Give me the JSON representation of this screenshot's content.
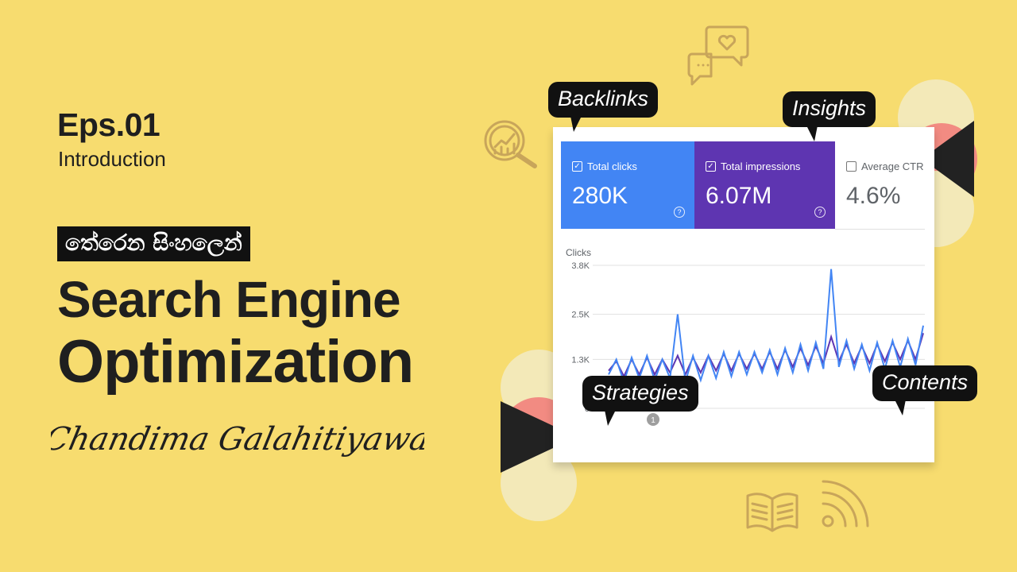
{
  "episode": {
    "label": "Eps.01",
    "subtitle": "Introduction"
  },
  "tagline_si": "තේරෙන සිංහලෙන්",
  "title": {
    "line1": "Search Engine",
    "line2": "Optimization"
  },
  "author": "Chandima Galahitiyawa",
  "colors": {
    "background": "#f7dc6f",
    "clicks": "#4285f4",
    "impressions": "#5e35b1",
    "bubble": "#111111",
    "accent_pink": "#f28b82"
  },
  "bubbles": [
    "Backlinks",
    "Insights",
    "Strategies",
    "Contents"
  ],
  "metrics": [
    {
      "label": "Total clicks",
      "value": "280K",
      "checked": true,
      "help": "?"
    },
    {
      "label": "Total impressions",
      "value": "6.07M",
      "checked": true,
      "help": "?"
    },
    {
      "label": "Average CTR",
      "value": "4.6%",
      "checked": false
    }
  ],
  "chart": {
    "y_title": "Clicks",
    "ticks": [
      "3.8K",
      "2.5K",
      "1.3K",
      "0"
    ],
    "annotation": "1"
  },
  "chart_data": {
    "type": "line",
    "ylabel": "Clicks",
    "ylim": [
      0,
      3800
    ],
    "series": [
      {
        "name": "Total clicks",
        "values": [
          900,
          1300,
          700,
          1350,
          800,
          1400,
          750,
          1300,
          800,
          2500,
          700,
          1400,
          750,
          1400,
          800,
          1500,
          850,
          1500,
          900,
          1500,
          950,
          1550,
          900,
          1600,
          950,
          1700,
          1000,
          1750,
          1050,
          3700,
          1100,
          1800,
          1050,
          1700,
          1000,
          1750,
          1050,
          1800,
          1100,
          1850,
          1150,
          2200
        ]
      },
      {
        "name": "Total impressions",
        "values": [
          1000,
          1250,
          850,
          1300,
          900,
          1350,
          900,
          1300,
          950,
          1400,
          900,
          1350,
          950,
          1400,
          1000,
          1450,
          1000,
          1450,
          1050,
          1450,
          1050,
          1500,
          1050,
          1550,
          1100,
          1600,
          1150,
          1650,
          1200,
          1900,
          1250,
          1700,
          1200,
          1650,
          1200,
          1700,
          1250,
          1750,
          1300,
          1800,
          1300,
          2000
        ]
      }
    ]
  },
  "icons": [
    "magnifier-chart-icon",
    "chat-heart-icon",
    "book-icon",
    "rss-icon"
  ]
}
